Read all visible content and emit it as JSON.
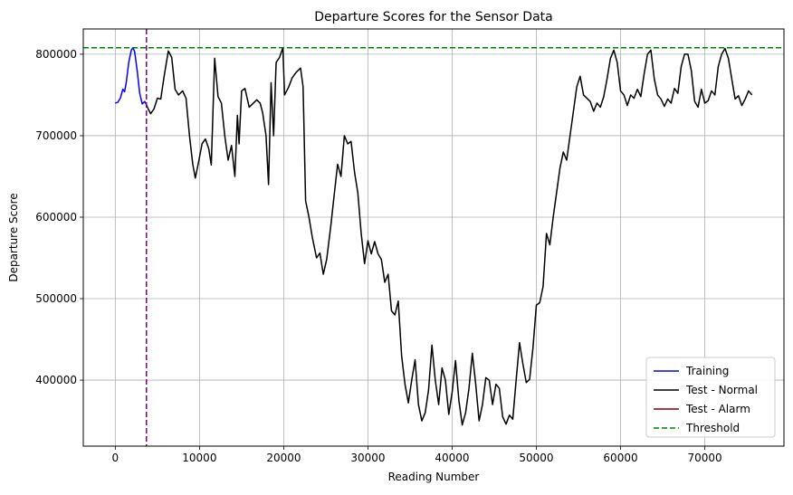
{
  "chart_data": {
    "type": "line",
    "title": "Departure Scores for the Sensor Data",
    "xlabel": "Reading Number",
    "ylabel": "Departure Score",
    "xlim": [
      -3800,
      79400
    ],
    "ylim": [
      319000,
      831000
    ],
    "x_ticks": [
      0,
      10000,
      20000,
      30000,
      40000,
      50000,
      60000,
      70000
    ],
    "y_ticks": [
      400000,
      500000,
      600000,
      700000,
      800000
    ],
    "grid": true,
    "legend_position": "lower-right",
    "threshold": 808000,
    "split_x": 3700,
    "series": [
      {
        "name": "Training",
        "color": "#0000ff",
        "style": "solid",
        "points": [
          [
            0,
            740000
          ],
          [
            300,
            741000
          ],
          [
            600,
            746000
          ],
          [
            900,
            757000
          ],
          [
            1100,
            754000
          ],
          [
            1300,
            765000
          ],
          [
            1600,
            790000
          ],
          [
            1900,
            805000
          ],
          [
            2100,
            808000
          ],
          [
            2300,
            803000
          ],
          [
            2600,
            780000
          ],
          [
            2900,
            752000
          ],
          [
            3200,
            739000
          ],
          [
            3500,
            742000
          ],
          [
            3700,
            738000
          ]
        ]
      },
      {
        "name": "Test - Normal",
        "color": "#000000",
        "style": "solid",
        "points": [
          [
            3700,
            738000
          ],
          [
            3900,
            733000
          ],
          [
            4200,
            727000
          ],
          [
            4600,
            733000
          ],
          [
            5000,
            746000
          ],
          [
            5400,
            745000
          ],
          [
            5800,
            773000
          ],
          [
            6300,
            804000
          ],
          [
            6700,
            796000
          ],
          [
            7100,
            757000
          ],
          [
            7500,
            750000
          ],
          [
            8000,
            755000
          ],
          [
            8400,
            746000
          ],
          [
            8800,
            701000
          ],
          [
            9200,
            665000
          ],
          [
            9500,
            648000
          ],
          [
            9900,
            668000
          ],
          [
            10300,
            690000
          ],
          [
            10700,
            696000
          ],
          [
            11100,
            684000
          ],
          [
            11400,
            664000
          ],
          [
            11800,
            795000
          ],
          [
            12200,
            748000
          ],
          [
            12600,
            740000
          ],
          [
            13000,
            700000
          ],
          [
            13400,
            670000
          ],
          [
            13800,
            688000
          ],
          [
            14200,
            650000
          ],
          [
            14500,
            725000
          ],
          [
            14700,
            690000
          ],
          [
            15000,
            755000
          ],
          [
            15400,
            758000
          ],
          [
            15900,
            735000
          ],
          [
            16400,
            740000
          ],
          [
            16800,
            744000
          ],
          [
            17200,
            740000
          ],
          [
            17500,
            728000
          ],
          [
            17900,
            700000
          ],
          [
            18200,
            640000
          ],
          [
            18500,
            765000
          ],
          [
            18800,
            700000
          ],
          [
            19100,
            790000
          ],
          [
            19500,
            796000
          ],
          [
            19900,
            808000
          ],
          [
            20100,
            750000
          ],
          [
            20600,
            760000
          ],
          [
            21000,
            771000
          ],
          [
            21500,
            778000
          ],
          [
            22000,
            783000
          ],
          [
            22300,
            760000
          ],
          [
            22600,
            620000
          ],
          [
            23000,
            600000
          ],
          [
            23400,
            575000
          ],
          [
            23900,
            550000
          ],
          [
            24300,
            556000
          ],
          [
            24700,
            530000
          ],
          [
            25100,
            548000
          ],
          [
            25600,
            590000
          ],
          [
            26000,
            628000
          ],
          [
            26400,
            665000
          ],
          [
            26800,
            650000
          ],
          [
            27200,
            700000
          ],
          [
            27600,
            690000
          ],
          [
            28000,
            693000
          ],
          [
            28400,
            656000
          ],
          [
            28800,
            630000
          ],
          [
            29200,
            580000
          ],
          [
            29600,
            543000
          ],
          [
            30000,
            571000
          ],
          [
            30400,
            555000
          ],
          [
            30800,
            570000
          ],
          [
            31200,
            555000
          ],
          [
            31600,
            548000
          ],
          [
            32000,
            520000
          ],
          [
            32400,
            530000
          ],
          [
            32800,
            485000
          ],
          [
            33200,
            480000
          ],
          [
            33600,
            497000
          ],
          [
            34000,
            430000
          ],
          [
            34400,
            395000
          ],
          [
            34800,
            372000
          ],
          [
            35200,
            400000
          ],
          [
            35600,
            425000
          ],
          [
            36000,
            370000
          ],
          [
            36400,
            350000
          ],
          [
            36800,
            360000
          ],
          [
            37200,
            388000
          ],
          [
            37600,
            443000
          ],
          [
            38000,
            400000
          ],
          [
            38400,
            370000
          ],
          [
            38800,
            415000
          ],
          [
            39200,
            400000
          ],
          [
            39600,
            358000
          ],
          [
            40000,
            385000
          ],
          [
            40400,
            424000
          ],
          [
            40800,
            375000
          ],
          [
            41200,
            345000
          ],
          [
            41600,
            360000
          ],
          [
            42000,
            390000
          ],
          [
            42400,
            433000
          ],
          [
            42800,
            395000
          ],
          [
            43200,
            350000
          ],
          [
            43600,
            370000
          ],
          [
            44000,
            403000
          ],
          [
            44400,
            400000
          ],
          [
            44800,
            370000
          ],
          [
            45200,
            395000
          ],
          [
            45600,
            390000
          ],
          [
            46000,
            355000
          ],
          [
            46400,
            346000
          ],
          [
            46800,
            357000
          ],
          [
            47200,
            352000
          ],
          [
            47600,
            400000
          ],
          [
            48000,
            446000
          ],
          [
            48400,
            420000
          ],
          [
            48800,
            397000
          ],
          [
            49200,
            401000
          ],
          [
            49600,
            440000
          ],
          [
            50000,
            492000
          ],
          [
            50400,
            495000
          ],
          [
            50800,
            515000
          ],
          [
            51200,
            580000
          ],
          [
            51600,
            566000
          ],
          [
            52000,
            600000
          ],
          [
            52400,
            630000
          ],
          [
            52800,
            660000
          ],
          [
            53200,
            680000
          ],
          [
            53600,
            670000
          ],
          [
            54000,
            700000
          ],
          [
            54400,
            730000
          ],
          [
            54800,
            760000
          ],
          [
            55200,
            773000
          ],
          [
            55600,
            750000
          ],
          [
            56000,
            746000
          ],
          [
            56400,
            742000
          ],
          [
            56800,
            730000
          ],
          [
            57200,
            740000
          ],
          [
            57600,
            735000
          ],
          [
            58000,
            748000
          ],
          [
            58400,
            770000
          ],
          [
            58800,
            795000
          ],
          [
            59200,
            805000
          ],
          [
            59600,
            790000
          ],
          [
            60000,
            755000
          ],
          [
            60400,
            750000
          ],
          [
            60800,
            737000
          ],
          [
            61200,
            750000
          ],
          [
            61600,
            746000
          ],
          [
            62000,
            757000
          ],
          [
            62400,
            748000
          ],
          [
            62800,
            776000
          ],
          [
            63200,
            800000
          ],
          [
            63600,
            805000
          ],
          [
            64000,
            770000
          ],
          [
            64400,
            750000
          ],
          [
            64800,
            745000
          ],
          [
            65200,
            736000
          ],
          [
            65600,
            745000
          ],
          [
            66000,
            740000
          ],
          [
            66400,
            758000
          ],
          [
            66800,
            752000
          ],
          [
            67200,
            785000
          ],
          [
            67600,
            800000
          ],
          [
            68000,
            800000
          ],
          [
            68400,
            780000
          ],
          [
            68800,
            742000
          ],
          [
            69200,
            735000
          ],
          [
            69600,
            757000
          ],
          [
            70000,
            740000
          ],
          [
            70400,
            743000
          ],
          [
            70800,
            755000
          ],
          [
            71200,
            750000
          ],
          [
            71600,
            785000
          ],
          [
            72000,
            800000
          ],
          [
            72400,
            807000
          ],
          [
            72800,
            795000
          ],
          [
            73200,
            770000
          ],
          [
            73600,
            745000
          ],
          [
            74000,
            749000
          ],
          [
            74400,
            737000
          ],
          [
            74800,
            745000
          ],
          [
            75200,
            755000
          ],
          [
            75600,
            750000
          ]
        ]
      },
      {
        "name": "Test - Alarm",
        "color": "#800000",
        "style": "solid",
        "points": []
      },
      {
        "name": "Threshold",
        "color": "#008000",
        "style": "dashed",
        "points": []
      }
    ],
    "vline_color": "#800080"
  }
}
